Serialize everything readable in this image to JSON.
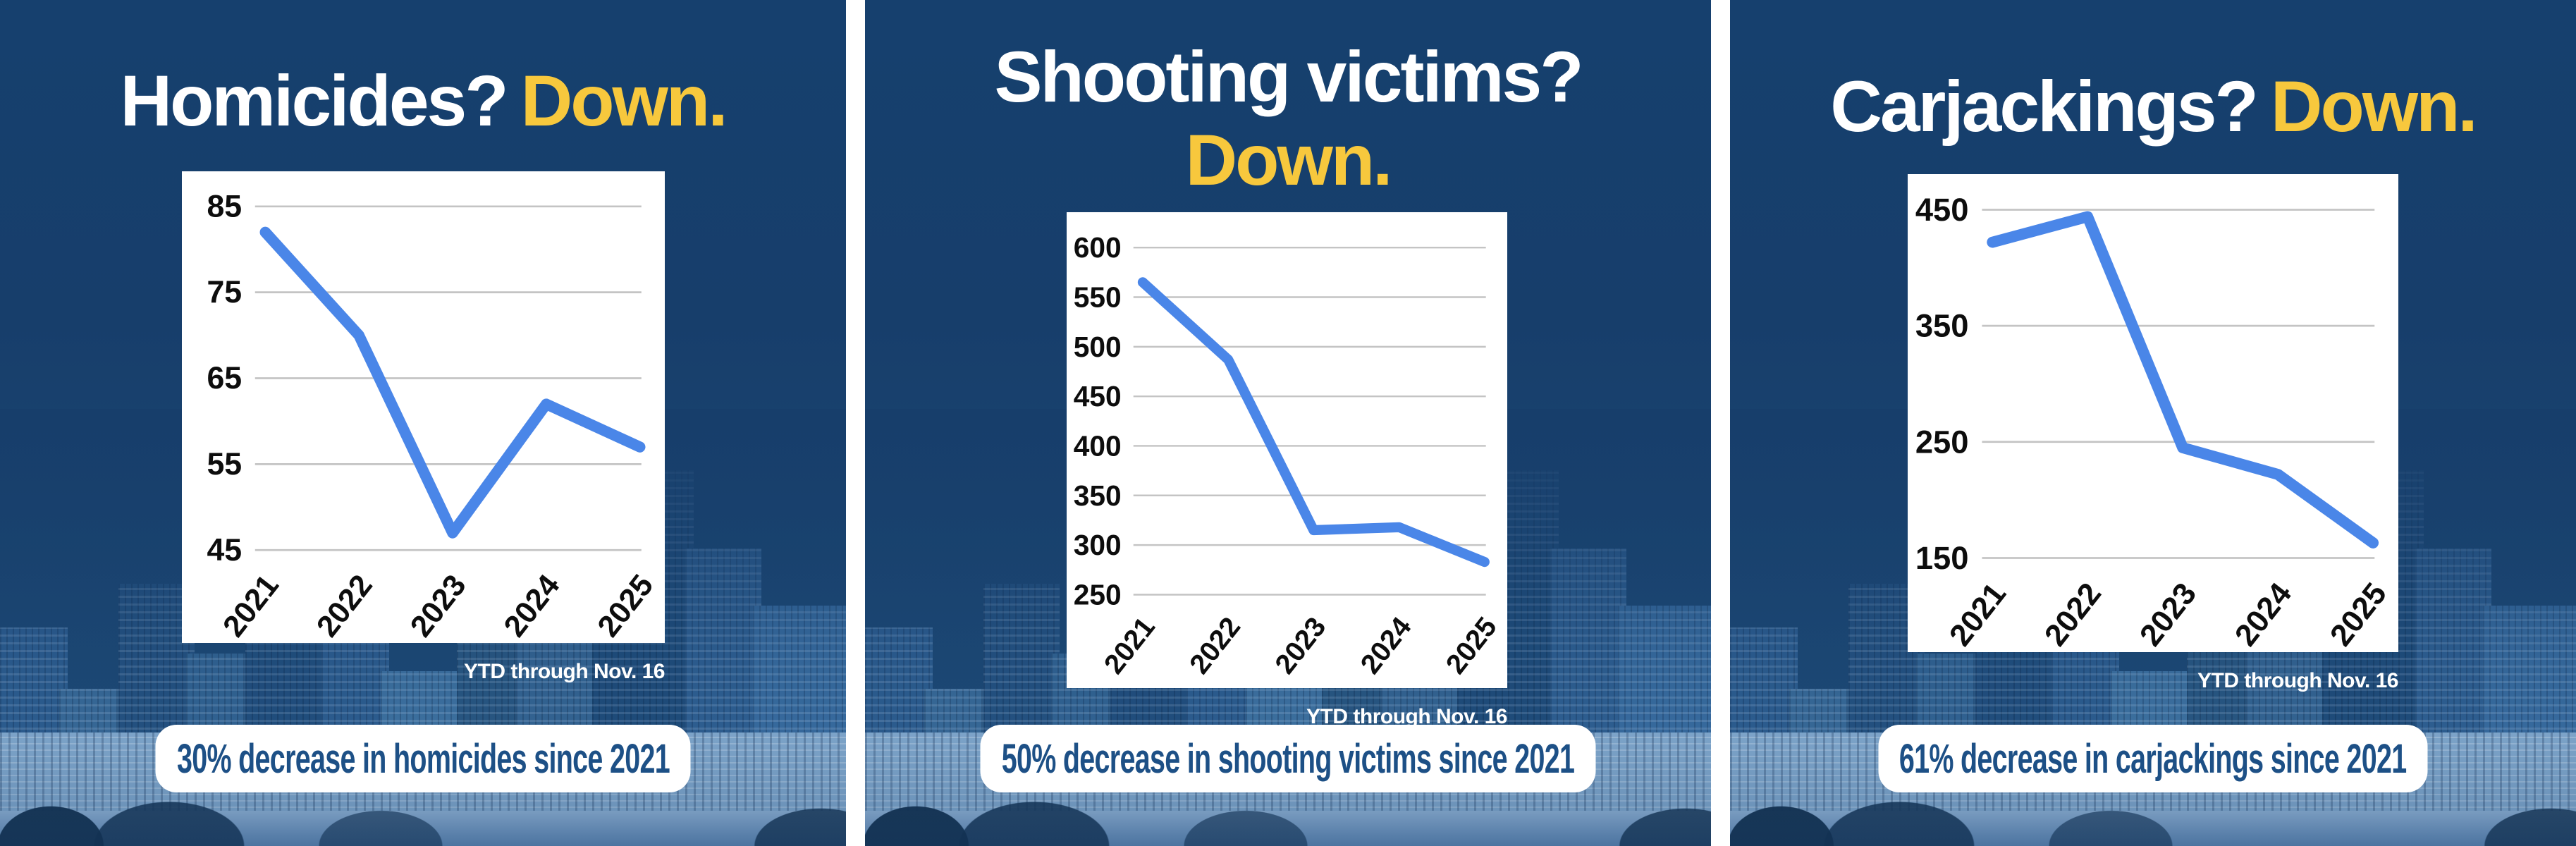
{
  "colors": {
    "background_navy": "#173e6b",
    "accent_yellow": "#f7c83d",
    "chart_line_blue": "#4a86e8",
    "banner_text_blue": "#1d5086",
    "gridline_gray": "#c4c4c4"
  },
  "panels": [
    {
      "title_question": "Homicides?",
      "title_answer": "Down.",
      "footnote": "YTD through Nov. 16",
      "banner": "30% decrease in homicides since 2021"
    },
    {
      "title_question": "Shooting victims?",
      "title_answer": "Down.",
      "footnote": "YTD through Nov. 16",
      "banner": "50% decrease in shooting victims since 2021"
    },
    {
      "title_question": "Carjackings?",
      "title_answer": "Down.",
      "footnote": "YTD through Nov. 16",
      "banner": "61% decrease in carjackings since 2021"
    }
  ],
  "chart_data": [
    {
      "type": "line",
      "title": "Homicides 2021-2025 (YTD through Nov. 16)",
      "categories": [
        "2021",
        "2022",
        "2023",
        "2024",
        "2025"
      ],
      "values": [
        82,
        70,
        47,
        62,
        57
      ],
      "y_ticks": [
        45,
        55,
        65,
        75,
        85
      ],
      "ylim": [
        45,
        85
      ],
      "xlabel": "",
      "ylabel": "",
      "grid": true,
      "legend": false,
      "line_color": "#4a86e8"
    },
    {
      "type": "line",
      "title": "Shooting victims 2021-2025 (YTD through Nov. 16)",
      "categories": [
        "2021",
        "2022",
        "2023",
        "2024",
        "2025"
      ],
      "values": [
        565,
        487,
        315,
        318,
        283
      ],
      "y_ticks": [
        250,
        300,
        350,
        400,
        450,
        500,
        550,
        600
      ],
      "ylim": [
        250,
        600
      ],
      "xlabel": "",
      "ylabel": "",
      "grid": true,
      "legend": false,
      "line_color": "#4a86e8"
    },
    {
      "type": "line",
      "title": "Carjackings 2021-2025 (YTD through Nov. 16)",
      "categories": [
        "2021",
        "2022",
        "2023",
        "2024",
        "2025"
      ],
      "values": [
        422,
        444,
        245,
        222,
        163
      ],
      "y_ticks": [
        150,
        250,
        350,
        450
      ],
      "ylim": [
        150,
        450
      ],
      "xlabel": "",
      "ylabel": "",
      "grid": true,
      "legend": false,
      "line_color": "#4a86e8"
    }
  ]
}
